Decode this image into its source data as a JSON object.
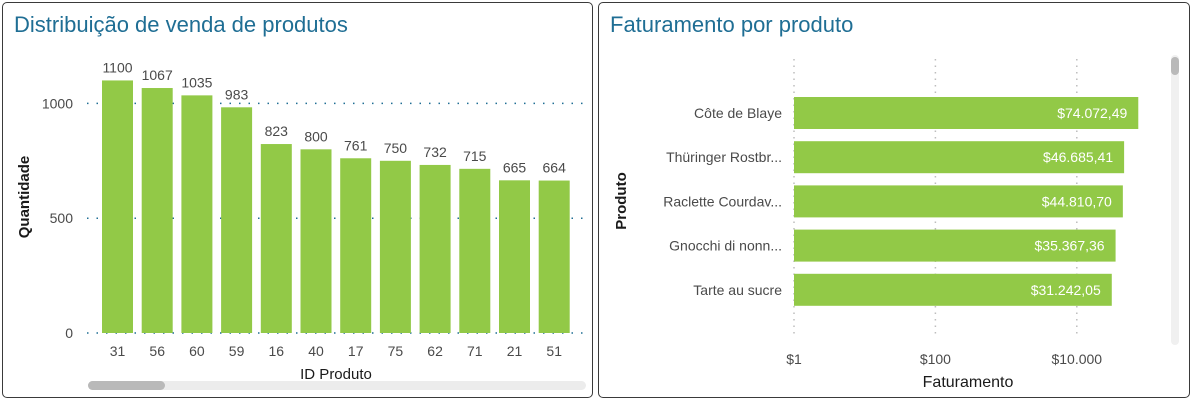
{
  "colors": {
    "bar": "#92c947",
    "title": "#1f6e94",
    "text": "#4a4a4a",
    "axis_title": "#1a1a1a",
    "grid": "#1f6e94"
  },
  "chart_data": [
    {
      "type": "bar",
      "title": "Distribuição de venda de produtos",
      "xlabel": "ID Produto",
      "ylabel": "Quantidade",
      "categories": [
        "31",
        "56",
        "60",
        "59",
        "16",
        "40",
        "17",
        "75",
        "62",
        "71",
        "21",
        "51"
      ],
      "values": [
        1100,
        1067,
        1035,
        983,
        823,
        800,
        761,
        750,
        732,
        715,
        665,
        664
      ],
      "y_ticks": [
        "0",
        "500",
        "1000"
      ],
      "ylim": [
        0,
        1100
      ],
      "grid": true,
      "legend": "none"
    },
    {
      "type": "bar",
      "orientation": "horizontal",
      "title": "Faturamento por produto",
      "xlabel": "Faturamento",
      "ylabel": "Produto",
      "categories": [
        "Côte de Blaye",
        "Thüringer Rostbr...",
        "Raclette Courdav...",
        "Gnocchi di nonn...",
        "Tarte au sucre"
      ],
      "values": [
        74072.49,
        46685.41,
        44810.7,
        35367.36,
        31242.05
      ],
      "value_labels": [
        "$74.072,49",
        "$46.685,41",
        "$44.810,70",
        "$35.367,36",
        "$31.242,05"
      ],
      "x_scale": "log",
      "x_ticks": [
        "$1",
        "$100",
        "$10.000"
      ],
      "grid": true,
      "legend": "none"
    }
  ]
}
